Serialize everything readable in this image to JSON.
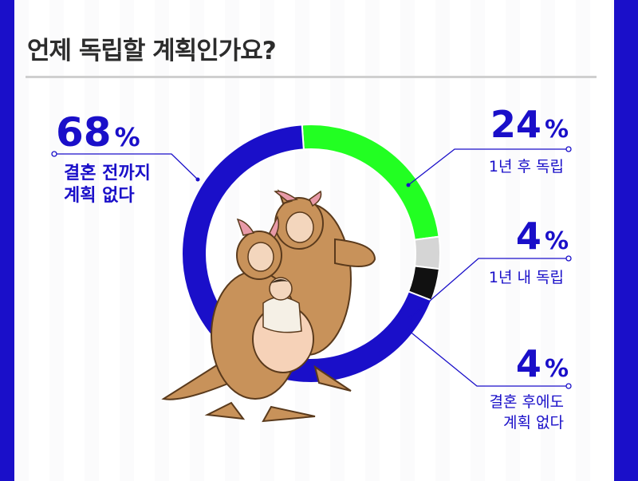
{
  "title": "언제 독립할 계획인가요?",
  "colors": {
    "accent": "#1a0fc9",
    "green": "#22ff22",
    "gray": "#d5d5d5",
    "black": "#111111",
    "kangaroo": "#c8925a"
  },
  "chart_data": {
    "type": "pie",
    "title": "언제 독립할 계획인가요?",
    "categories": [
      "결혼 전까지 계획 없다",
      "1년 후 독립",
      "1년 내 독립",
      "결혼 후에도 계획 없다"
    ],
    "values": [
      68,
      24,
      4,
      4
    ],
    "unit": "%"
  },
  "labels": {
    "a": {
      "pct": "68",
      "sign": "%",
      "line1": "결혼 전까지",
      "line2": "계획 없다"
    },
    "b": {
      "pct": "24",
      "sign": "%",
      "line1": "1년 후 독립"
    },
    "c": {
      "pct": "4",
      "sign": "%",
      "line1": "1년 내 독립"
    },
    "d": {
      "pct": "4",
      "sign": "%",
      "line1": "결혼 후에도",
      "line2": "계획 없다"
    }
  },
  "illustration": {
    "name": "kangaroo-family-illustration"
  }
}
